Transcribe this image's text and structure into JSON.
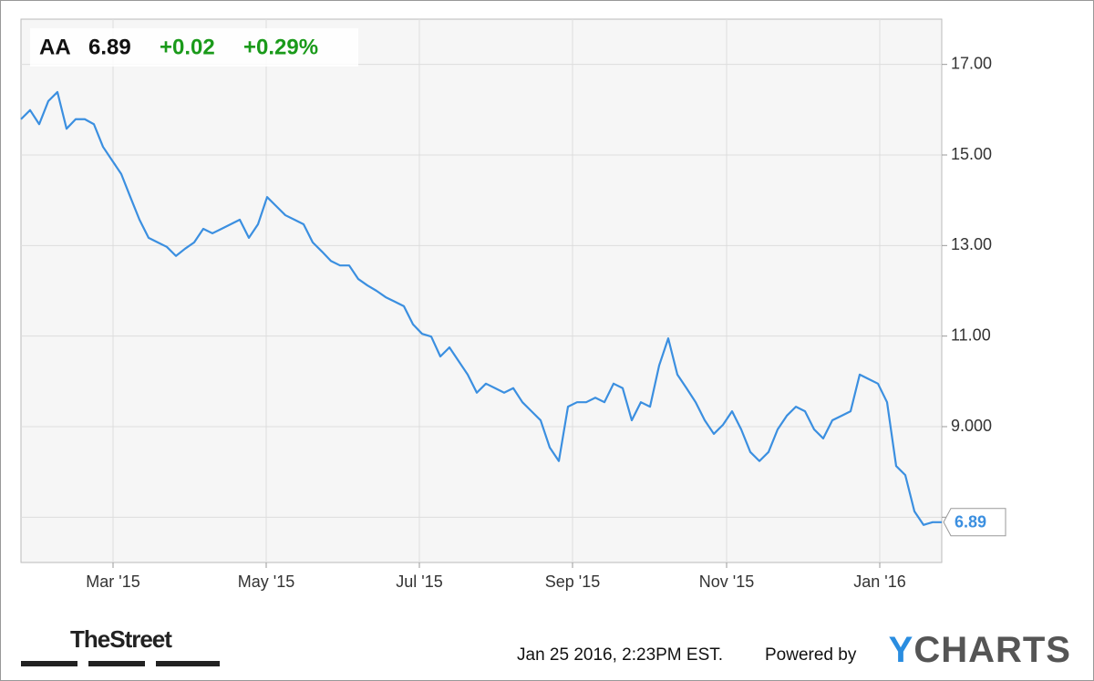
{
  "chart_data": {
    "type": "line",
    "ticker": "AA",
    "price": "6.89",
    "change": "+0.02",
    "change_pct": "+0.29%",
    "values": [
      15.79,
      15.99,
      15.68,
      16.19,
      16.39,
      15.58,
      15.79,
      15.79,
      15.68,
      15.18,
      14.88,
      14.58,
      14.07,
      13.57,
      13.17,
      13.07,
      12.97,
      12.77,
      12.93,
      13.07,
      13.37,
      13.27,
      13.37,
      13.47,
      13.57,
      13.17,
      13.47,
      14.07,
      13.87,
      13.67,
      13.57,
      13.47,
      13.07,
      12.87,
      12.66,
      12.56,
      12.56,
      12.26,
      12.12,
      12.0,
      11.86,
      11.76,
      11.66,
      11.26,
      11.05,
      10.99,
      10.55,
      10.75,
      10.45,
      10.15,
      9.75,
      9.95,
      9.85,
      9.75,
      9.85,
      9.54,
      9.34,
      9.14,
      8.54,
      8.24,
      9.44,
      9.54,
      9.54,
      9.64,
      9.54,
      9.95,
      9.85,
      9.14,
      9.54,
      9.44,
      10.35,
      10.95,
      10.15,
      9.85,
      9.54,
      9.14,
      8.84,
      9.04,
      9.34,
      8.94,
      8.44,
      8.24,
      8.44,
      8.94,
      9.24,
      9.44,
      9.34,
      8.94,
      8.74,
      9.14,
      9.24,
      9.34,
      10.15,
      10.05,
      9.95,
      9.54,
      8.13,
      7.93,
      7.13,
      6.83,
      6.89,
      6.89
    ],
    "color": "#3b8fe0",
    "xlim": [
      0,
      101
    ],
    "xticks": [
      {
        "value": 10.1,
        "label": "Mar '15"
      },
      {
        "value": 26.9,
        "label": "May '15"
      },
      {
        "value": 43.7,
        "label": "Jul '15"
      },
      {
        "value": 60.5,
        "label": "Sep '15"
      },
      {
        "value": 77.4,
        "label": "Nov '15"
      },
      {
        "value": 94.2,
        "label": "Jan '16"
      }
    ],
    "ylim": [
      6,
      18
    ],
    "yticks": [
      {
        "value": 7,
        "label": null
      },
      {
        "value": 9,
        "label": "9.000"
      },
      {
        "value": 11,
        "label": "11.00"
      },
      {
        "value": 13,
        "label": "13.00"
      },
      {
        "value": 15,
        "label": "15.00"
      },
      {
        "value": 17,
        "label": "17.00"
      }
    ],
    "grid": true,
    "source": "TheStreet",
    "timestamp": "Jan 25 2016, 2:23PM EST.",
    "powered_by": "Powered by",
    "brand": "YCHARTS"
  }
}
